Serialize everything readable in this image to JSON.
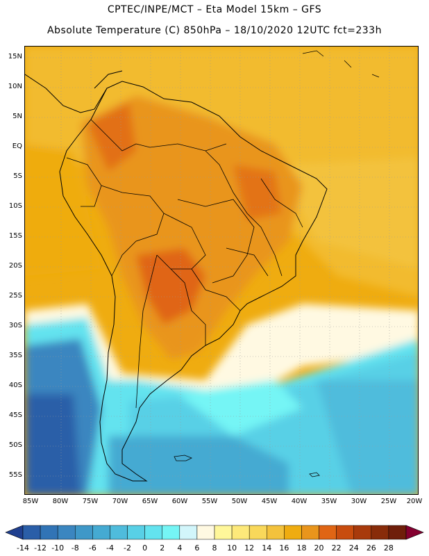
{
  "header": {
    "line1": "CPTEC/INPE/MCT –  Eta Model 15km – GFS",
    "line2": "Absolute Temperature (C) 850hPa – 18/10/2020 12UTC fct=233h"
  },
  "lat_labels": [
    "15N",
    "10N",
    "5N",
    "EQ",
    "5S",
    "10S",
    "15S",
    "20S",
    "25S",
    "30S",
    "35S",
    "40S",
    "45S",
    "50S",
    "55S"
  ],
  "lon_labels": [
    "85W",
    "80W",
    "75W",
    "70W",
    "65W",
    "60W",
    "55W",
    "50W",
    "45W",
    "40W",
    "35W",
    "30W",
    "25W",
    "20W"
  ],
  "colorbar": {
    "labels": [
      "-14",
      "-12",
      "-10",
      "-8",
      "-6",
      "-4",
      "-2",
      "0",
      "2",
      "4",
      "6",
      "8",
      "10",
      "12",
      "14",
      "16",
      "18",
      "20",
      "22",
      "24",
      "26",
      "28"
    ],
    "colors": [
      "#1f3f8f",
      "#2a5ea8",
      "#3174b6",
      "#3b86c0",
      "#3f98c8",
      "#45aad2",
      "#4fbcdc",
      "#58d0e6",
      "#63e3ef",
      "#75f5f5",
      "#d2f6fb",
      "#fff9e2",
      "#fff79a",
      "#fde97a",
      "#f9d85a",
      "#f3c23c",
      "#efac10",
      "#e9951c",
      "#e06514",
      "#c84c0e",
      "#a83a0c",
      "#882c0a",
      "#6f1e0a",
      "#840030"
    ]
  },
  "icons": {
    "low_arrow": "triangle-left-icon",
    "high_arrow": "triangle-right-icon"
  }
}
